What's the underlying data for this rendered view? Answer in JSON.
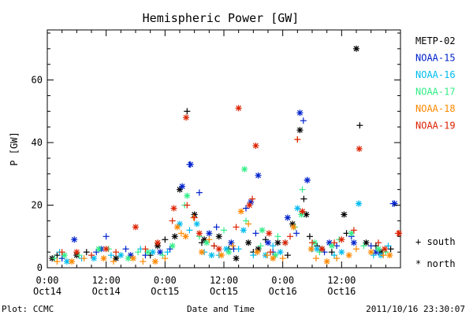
{
  "chart_data": {
    "type": "scatter",
    "title": "Hemispheric Power [GW]",
    "xlabel": "Date and Time",
    "ylabel": "P [GW]",
    "xlim_hours": [
      0,
      72
    ],
    "ylim": [
      0,
      76
    ],
    "y_ticks": [
      0,
      20,
      40,
      60
    ],
    "x_ticks": [
      {
        "hour": 0,
        "time": "0:00",
        "date": "Oct14"
      },
      {
        "hour": 12,
        "time": "12:00",
        "date": "Oct14"
      },
      {
        "hour": 24,
        "time": "0:00",
        "date": "Oct15"
      },
      {
        "hour": 36,
        "time": "12:00",
        "date": "Oct15"
      },
      {
        "hour": 48,
        "time": "0:00",
        "date": "Oct16"
      },
      {
        "hour": 60,
        "time": "12:00",
        "date": "Oct16"
      }
    ],
    "grid": false,
    "legend_position": "right",
    "markers": {
      "south": "+",
      "north": "*"
    },
    "marker_legend": [
      {
        "symbol": "+",
        "label": "south"
      },
      {
        "symbol": "*",
        "label": "north"
      }
    ],
    "series": [
      {
        "name": "METP-02",
        "color": "#000000",
        "south": [
          [
            2,
            4
          ],
          [
            8,
            5
          ],
          [
            21,
            4
          ],
          [
            24,
            9
          ],
          [
            28.5,
            50
          ],
          [
            31.5,
            8
          ],
          [
            34,
            7
          ],
          [
            37,
            6
          ],
          [
            42,
            5
          ],
          [
            44.5,
            9
          ],
          [
            49,
            4
          ],
          [
            52.3,
            22
          ],
          [
            53.5,
            10
          ],
          [
            55,
            7
          ],
          [
            58,
            5
          ],
          [
            61,
            11
          ],
          [
            63.7,
            45.5
          ],
          [
            67,
            7
          ],
          [
            70,
            6
          ]
        ],
        "north": [
          [
            1,
            3
          ],
          [
            6,
            4
          ],
          [
            14,
            3
          ],
          [
            22.5,
            7
          ],
          [
            26,
            10
          ],
          [
            27,
            25
          ],
          [
            30,
            17
          ],
          [
            32,
            9
          ],
          [
            35,
            10
          ],
          [
            38.5,
            3
          ],
          [
            41,
            8
          ],
          [
            43,
            6
          ],
          [
            47,
            8
          ],
          [
            50,
            14
          ],
          [
            51.5,
            44
          ],
          [
            52.8,
            17
          ],
          [
            56,
            6
          ],
          [
            60.5,
            17
          ],
          [
            63,
            70
          ],
          [
            65,
            8
          ],
          [
            68,
            5
          ]
        ]
      },
      {
        "name": "NOAA-15",
        "color": "#0022cc",
        "south": [
          [
            3,
            3
          ],
          [
            10,
            5
          ],
          [
            12,
            10
          ],
          [
            16,
            6
          ],
          [
            20,
            4
          ],
          [
            25,
            6
          ],
          [
            29,
            33
          ],
          [
            31,
            24
          ],
          [
            34.5,
            13
          ],
          [
            38,
            6
          ],
          [
            40.5,
            19
          ],
          [
            42.5,
            11
          ],
          [
            46,
            5
          ],
          [
            50.8,
            11
          ],
          [
            52.2,
            47
          ],
          [
            53,
            28
          ],
          [
            56.5,
            5
          ],
          [
            59,
            7
          ],
          [
            62,
            10
          ],
          [
            66,
            7
          ],
          [
            70.5,
            20.5
          ]
        ],
        "north": [
          [
            5.5,
            9
          ],
          [
            11,
            6
          ],
          [
            17,
            4
          ],
          [
            23,
            5
          ],
          [
            27.5,
            26
          ],
          [
            29.2,
            33
          ],
          [
            33,
            11
          ],
          [
            37.5,
            8
          ],
          [
            41.5,
            21
          ],
          [
            43,
            29.5
          ],
          [
            45,
            8
          ],
          [
            49,
            16
          ],
          [
            51.5,
            49.5
          ],
          [
            53,
            28
          ],
          [
            57.5,
            8
          ],
          [
            62.5,
            8
          ],
          [
            67,
            5
          ],
          [
            70.8,
            20.5
          ]
        ]
      },
      {
        "name": "NOAA-16",
        "color": "#00bbee",
        "south": [
          [
            2.5,
            5
          ],
          [
            7,
            3
          ],
          [
            13,
            4
          ],
          [
            19,
            6
          ],
          [
            24.5,
            5
          ],
          [
            29,
            12
          ],
          [
            32,
            5
          ],
          [
            35,
            4
          ],
          [
            39,
            6
          ],
          [
            42,
            4
          ],
          [
            46,
            7
          ],
          [
            48.5,
            8
          ],
          [
            54,
            6
          ],
          [
            58.5,
            4
          ],
          [
            63.5,
            20.5
          ],
          [
            66.5,
            4
          ],
          [
            69.5,
            7
          ]
        ],
        "north": [
          [
            4,
            2
          ],
          [
            9.5,
            3
          ],
          [
            15,
            4
          ],
          [
            21.5,
            5
          ],
          [
            27,
            14
          ],
          [
            30.5,
            14
          ],
          [
            33.5,
            4
          ],
          [
            36.5,
            6
          ],
          [
            40,
            12
          ],
          [
            44.5,
            4
          ],
          [
            47.5,
            5
          ],
          [
            51,
            19
          ],
          [
            55,
            6
          ],
          [
            60,
            5
          ],
          [
            63.5,
            20.5
          ],
          [
            68,
            4
          ]
        ]
      },
      {
        "name": "NOAA-17",
        "color": "#33ee88",
        "south": [
          [
            1.5,
            3
          ],
          [
            6.5,
            4
          ],
          [
            12.5,
            6
          ],
          [
            18.5,
            5
          ],
          [
            23.5,
            4
          ],
          [
            28,
            20
          ],
          [
            31,
            10
          ],
          [
            36,
            12
          ],
          [
            40.5,
            15
          ],
          [
            43.5,
            7
          ],
          [
            47,
            10
          ],
          [
            50.5,
            13
          ],
          [
            52,
            25
          ],
          [
            55.5,
            5
          ],
          [
            59.5,
            9
          ],
          [
            64.5,
            7
          ],
          [
            69,
            5
          ]
        ],
        "north": [
          [
            3.5,
            4
          ],
          [
            10.5,
            6
          ],
          [
            16.5,
            3
          ],
          [
            20.5,
            5
          ],
          [
            25.5,
            7
          ],
          [
            28.5,
            23
          ],
          [
            32.5,
            8
          ],
          [
            37,
            5
          ],
          [
            40.2,
            31.5
          ],
          [
            43.8,
            12
          ],
          [
            46.5,
            4
          ],
          [
            51.8,
            17
          ],
          [
            54.5,
            8
          ],
          [
            58,
            7
          ],
          [
            62,
            11
          ],
          [
            67.5,
            6
          ]
        ]
      },
      {
        "name": "NOAA-18",
        "color": "#ff8800",
        "south": [
          [
            2,
            2
          ],
          [
            7.5,
            3
          ],
          [
            13.5,
            2
          ],
          [
            19.5,
            2
          ],
          [
            24,
            3
          ],
          [
            27.3,
            11
          ],
          [
            29.8,
            16
          ],
          [
            33,
            9
          ],
          [
            37.8,
            7
          ],
          [
            41,
            14
          ],
          [
            44.8,
            4
          ],
          [
            48,
            3
          ],
          [
            51,
            41
          ],
          [
            54.8,
            3
          ],
          [
            59,
            3
          ],
          [
            63,
            6
          ],
          [
            68.5,
            4
          ]
        ],
        "north": [
          [
            5,
            2
          ],
          [
            11.5,
            3
          ],
          [
            17.5,
            3
          ],
          [
            22,
            2
          ],
          [
            26.5,
            13
          ],
          [
            28.2,
            10
          ],
          [
            31.5,
            5
          ],
          [
            35.5,
            4
          ],
          [
            39.5,
            18
          ],
          [
            42.8,
            5
          ],
          [
            46,
            3
          ],
          [
            50.2,
            13
          ],
          [
            53.8,
            6
          ],
          [
            57,
            2
          ],
          [
            61.5,
            4
          ],
          [
            66,
            5
          ],
          [
            69.8,
            4
          ]
        ]
      },
      {
        "name": "NOAA-19",
        "color": "#dd2200",
        "south": [
          [
            3,
            5
          ],
          [
            9,
            4
          ],
          [
            14,
            5
          ],
          [
            20,
            6
          ],
          [
            25.5,
            15
          ],
          [
            28.5,
            20
          ],
          [
            30,
            16
          ],
          [
            34,
            7
          ],
          [
            38.5,
            13
          ],
          [
            41.8,
            22
          ],
          [
            45.5,
            5
          ],
          [
            49.5,
            10
          ],
          [
            51,
            41
          ],
          [
            54,
            8
          ],
          [
            58.5,
            8
          ],
          [
            62.5,
            12
          ],
          [
            67.5,
            8
          ],
          [
            71.5,
            11
          ]
        ],
        "north": [
          [
            6,
            5
          ],
          [
            12,
            6
          ],
          [
            18,
            13
          ],
          [
            22.5,
            8
          ],
          [
            25.8,
            19
          ],
          [
            28.3,
            48
          ],
          [
            31,
            11
          ],
          [
            35,
            6
          ],
          [
            39,
            51
          ],
          [
            41.2,
            20
          ],
          [
            42.5,
            39
          ],
          [
            45.2,
            11
          ],
          [
            48.5,
            8
          ],
          [
            52,
            18
          ],
          [
            56,
            6
          ],
          [
            60,
            9
          ],
          [
            63.6,
            38
          ],
          [
            68.8,
            6
          ],
          [
            71.7,
            11
          ]
        ]
      }
    ]
  },
  "footer": {
    "plot_label": "Plot: CCMC",
    "timestamp": "2011/10/16 23:30:07"
  }
}
